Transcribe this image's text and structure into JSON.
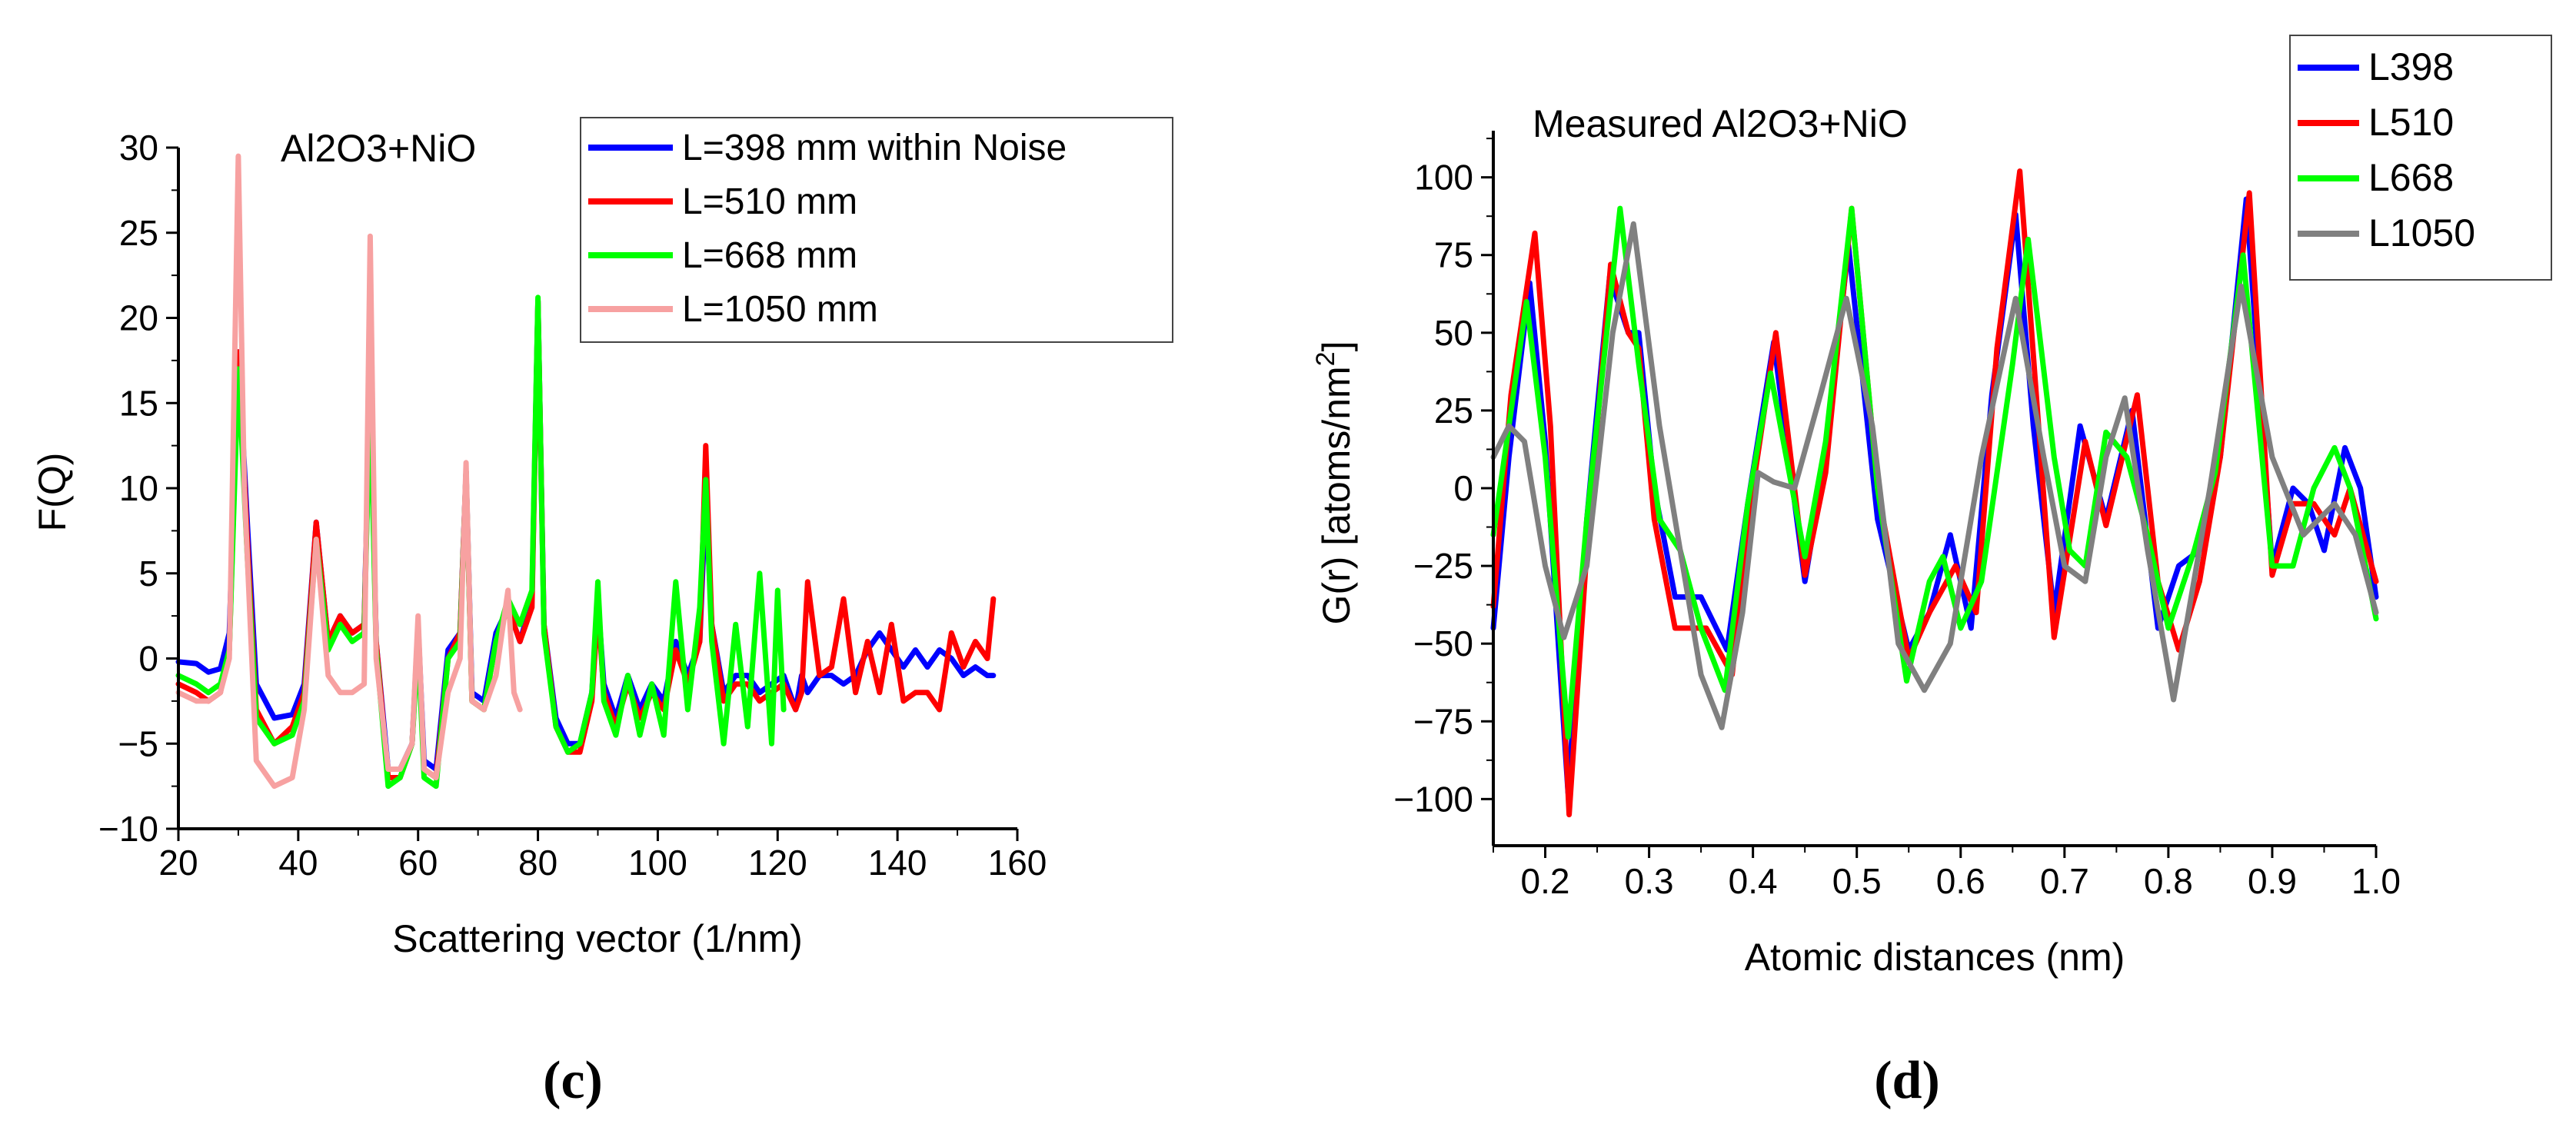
{
  "chart_data": [
    {
      "id": "c",
      "type": "line",
      "panel_label": "(c)",
      "annotation": "Al2O3+NiO",
      "xlabel": "Scattering vector (1/nm)",
      "ylabel": "F(Q)",
      "xlim": [
        20,
        160
      ],
      "ylim": [
        -10,
        30
      ],
      "xticks": [
        "20",
        "40",
        "60",
        "80",
        "100",
        "120",
        "140",
        "160"
      ],
      "yticks": [
        "−10",
        "−5",
        "0",
        "5",
        "10",
        "15",
        "20",
        "25",
        "30"
      ],
      "xtick_values": [
        20,
        40,
        60,
        80,
        100,
        120,
        140,
        160
      ],
      "ytick_values": [
        -10,
        -5,
        0,
        5,
        10,
        15,
        20,
        25,
        30
      ],
      "legend_position": "top-right",
      "series": [
        {
          "name": "L=398 mm within Noise",
          "color": "#0000ff",
          "x": [
            20,
            23,
            25,
            27,
            28.5,
            30,
            31.5,
            33,
            36,
            39,
            41,
            43,
            45,
            47,
            49,
            51,
            52,
            53,
            55,
            57,
            59,
            60,
            61,
            63,
            65,
            67,
            68,
            69,
            71,
            73,
            75,
            77,
            79,
            80,
            81,
            83,
            85,
            87,
            89,
            90,
            91,
            93,
            95,
            97,
            99,
            101,
            103,
            105,
            107,
            108,
            109,
            111,
            113,
            115,
            117,
            119,
            121,
            123,
            124,
            125,
            127,
            129,
            131,
            133,
            135,
            137,
            139,
            141,
            143,
            145,
            147,
            149,
            151,
            153,
            155,
            156
          ],
          "y": [
            -0.2,
            -0.3,
            -0.8,
            -0.6,
            1.5,
            18,
            8,
            -1.5,
            -3.5,
            -3.3,
            -1.5,
            8,
            1,
            2.5,
            1.5,
            2,
            17,
            1,
            -6.5,
            -6.5,
            -5,
            2,
            -6,
            -6.5,
            0.5,
            1.5,
            11,
            -2,
            -2.5,
            1.5,
            3,
            1,
            3.5,
            21,
            2,
            -3.5,
            -5,
            -5,
            -2,
            3.5,
            -1.5,
            -3.5,
            -1,
            -3,
            -1.5,
            -2.5,
            1,
            -1,
            1,
            9.5,
            2,
            -2,
            -1,
            -1,
            -2,
            -1.5,
            -1,
            -3,
            -1,
            -2,
            -1,
            -1,
            -1.5,
            -1,
            0.5,
            1.5,
            0.5,
            -0.5,
            0.5,
            -0.5,
            0.5,
            0,
            -1,
            -0.5,
            -1,
            -1
          ]
        },
        {
          "name": "L=510 mm",
          "color": "#ff0000",
          "x": [
            20,
            23,
            25,
            27,
            28.5,
            30,
            31.5,
            33,
            36,
            39,
            41,
            43,
            45,
            47,
            49,
            51,
            52,
            53,
            55,
            57,
            59,
            60,
            61,
            63,
            65,
            67,
            68,
            69,
            71,
            73,
            75,
            77,
            79,
            80,
            81,
            83,
            85,
            87,
            89,
            90,
            91,
            93,
            95,
            97,
            99,
            101,
            103,
            105,
            107,
            108,
            109,
            111,
            113,
            115,
            117,
            119,
            121,
            123,
            124,
            125,
            127,
            129,
            131,
            133,
            135,
            137,
            139,
            141,
            143,
            145,
            147,
            149,
            151,
            153,
            155,
            156
          ],
          "y": [
            -1.5,
            -2,
            -2.5,
            -2,
            0.5,
            18,
            7,
            -3,
            -5,
            -4,
            -2,
            8,
            1,
            2.5,
            1.5,
            2,
            16,
            1,
            -7,
            -7,
            -5,
            1.5,
            -6.5,
            -7,
            0,
            1.5,
            11,
            -2.5,
            -3,
            1,
            3,
            1,
            3,
            21,
            2,
            -4,
            -5.5,
            -5.5,
            -2.5,
            3,
            -2,
            -4,
            -1.5,
            -3.5,
            -2,
            -3,
            0.5,
            -1.5,
            1,
            12.5,
            2,
            -2.5,
            -1.5,
            -1.5,
            -2.5,
            -2,
            -1.5,
            -3,
            -2,
            4.5,
            -1,
            -0.5,
            3.5,
            -2,
            1,
            -2,
            2,
            -2.5,
            -2,
            -2,
            -3,
            1.5,
            -0.5,
            1,
            0,
            3.5
          ]
        },
        {
          "name": "L=668 mm",
          "color": "#00ff00",
          "x": [
            20,
            23,
            25,
            27,
            28.5,
            30,
            31.5,
            33,
            36,
            39,
            41,
            43,
            45,
            47,
            49,
            51,
            52,
            53,
            55,
            57,
            59,
            60,
            61,
            63,
            65,
            67,
            68,
            69,
            71,
            73,
            75,
            77,
            79,
            80,
            81,
            83,
            85,
            87,
            89,
            90,
            91,
            93,
            95,
            97,
            99,
            101,
            103,
            105,
            107,
            108,
            109,
            111,
            113,
            115,
            117,
            119,
            120,
            121
          ],
          "y": [
            -1,
            -1.5,
            -2,
            -1.5,
            0.5,
            17,
            6,
            -3.5,
            -5,
            -4.5,
            -2.5,
            7,
            0.5,
            2,
            1,
            1.5,
            16,
            0.5,
            -7.5,
            -7,
            -5,
            1,
            -7,
            -7.5,
            0,
            1,
            11,
            -2.5,
            -3,
            1,
            3.5,
            2,
            4,
            21.2,
            1.5,
            -4,
            -5.5,
            -5,
            -2,
            4.5,
            -2.5,
            -4.5,
            -1,
            -4.5,
            -1.5,
            -4.5,
            4.5,
            -3,
            3,
            10.5,
            1,
            -5,
            2,
            -4,
            5,
            -5,
            4,
            -3
          ]
        },
        {
          "name": "L=1050 mm",
          "color": "#f7a1a1",
          "x": [
            20,
            23,
            25,
            27,
            28.5,
            30,
            31,
            33,
            36,
            39,
            41,
            43,
            45,
            47,
            49,
            51,
            52,
            53,
            55,
            57,
            59,
            60,
            61,
            63,
            65,
            67,
            68,
            69,
            71,
            73,
            75,
            76,
            77
          ],
          "y": [
            -2,
            -2.5,
            -2.5,
            -2,
            0,
            29.5,
            10,
            -6,
            -7.5,
            -7,
            -3,
            7,
            -1,
            -2,
            -2,
            -1.5,
            24.8,
            0,
            -6.5,
            -6.5,
            -5,
            2.5,
            -6.5,
            -7,
            -2,
            0,
            11.5,
            -2.5,
            -3,
            -1,
            4,
            -2,
            -3
          ]
        }
      ]
    },
    {
      "id": "d",
      "type": "line",
      "panel_label": "(d)",
      "annotation": "Measured Al2O3+NiO",
      "xlabel": "Atomic distances (nm)",
      "ylabel": "G(r) [atoms/nm",
      "ylabel_superscript": "2",
      "ylabel_suffix": "]",
      "xlim": [
        0.15,
        1.0
      ],
      "ylim": [
        -115,
        115
      ],
      "xticks": [
        "0.2",
        "0.3",
        "0.4",
        "0.5",
        "0.6",
        "0.7",
        "0.8",
        "0.9",
        "1.0"
      ],
      "yticks": [
        "−100",
        "−75",
        "−50",
        "−25",
        "0",
        "25",
        "50",
        "75",
        "100"
      ],
      "xtick_values": [
        0.2,
        0.3,
        0.4,
        0.5,
        0.6,
        0.7,
        0.8,
        0.9,
        1.0
      ],
      "ytick_values": [
        -100,
        -75,
        -50,
        -25,
        0,
        25,
        50,
        75,
        100
      ],
      "legend_position": "top-right",
      "series": [
        {
          "name": "L398",
          "color": "#0000ff",
          "x": [
            0.15,
            0.165,
            0.185,
            0.2,
            0.222,
            0.24,
            0.262,
            0.28,
            0.29,
            0.305,
            0.325,
            0.335,
            0.35,
            0.375,
            0.395,
            0.42,
            0.45,
            0.47,
            0.492,
            0.52,
            0.55,
            0.57,
            0.59,
            0.61,
            0.63,
            0.653,
            0.67,
            0.69,
            0.715,
            0.74,
            0.765,
            0.79,
            0.81,
            0.83,
            0.85,
            0.875,
            0.9,
            0.92,
            0.935,
            0.95,
            0.97,
            0.985,
            1.0
          ],
          "y": [
            -45,
            10,
            66,
            15,
            -98,
            -10,
            68,
            50,
            50,
            0,
            -35,
            -35,
            -35,
            -52,
            -5,
            47,
            -30,
            10,
            78,
            -10,
            -52,
            -40,
            -15,
            -45,
            30,
            88,
            20,
            -40,
            20,
            -10,
            25,
            -45,
            -25,
            -20,
            10,
            93,
            -25,
            0,
            -5,
            -20,
            13,
            0,
            -35
          ]
        },
        {
          "name": "L510",
          "color": "#ff0000",
          "x": [
            0.15,
            0.167,
            0.19,
            0.205,
            0.223,
            0.24,
            0.263,
            0.28,
            0.29,
            0.305,
            0.325,
            0.34,
            0.355,
            0.38,
            0.4,
            0.422,
            0.45,
            0.47,
            0.495,
            0.52,
            0.55,
            0.57,
            0.595,
            0.615,
            0.635,
            0.657,
            0.675,
            0.69,
            0.72,
            0.74,
            0.77,
            0.79,
            0.81,
            0.83,
            0.85,
            0.878,
            0.9,
            0.92,
            0.94,
            0.96,
            0.975,
            1.0
          ],
          "y": [
            -38,
            30,
            82,
            20,
            -105,
            -20,
            72,
            50,
            45,
            -10,
            -45,
            -45,
            -45,
            -60,
            0,
            50,
            -28,
            5,
            90,
            0,
            -55,
            -40,
            -25,
            -40,
            45,
            102,
            20,
            -48,
            15,
            -12,
            30,
            -30,
            -52,
            -30,
            10,
            95,
            -28,
            -5,
            -5,
            -15,
            0,
            -30
          ]
        },
        {
          "name": "L668",
          "color": "#00ff00",
          "x": [
            0.15,
            0.165,
            0.182,
            0.2,
            0.222,
            0.24,
            0.272,
            0.29,
            0.31,
            0.33,
            0.35,
            0.373,
            0.395,
            0.417,
            0.45,
            0.47,
            0.495,
            0.52,
            0.548,
            0.57,
            0.583,
            0.6,
            0.62,
            0.65,
            0.665,
            0.69,
            0.705,
            0.72,
            0.74,
            0.76,
            0.78,
            0.8,
            0.825,
            0.845,
            0.872,
            0.9,
            0.92,
            0.94,
            0.96,
            0.975,
            1.0
          ],
          "y": [
            -15,
            20,
            60,
            10,
            -80,
            -10,
            90,
            40,
            -10,
            -20,
            -45,
            -65,
            -5,
            37,
            -22,
            15,
            90,
            0,
            -62,
            -30,
            -22,
            -45,
            -30,
            40,
            80,
            10,
            -20,
            -25,
            18,
            10,
            -15,
            -45,
            -20,
            5,
            75,
            -25,
            -25,
            0,
            13,
            0,
            -42
          ]
        },
        {
          "name": "L1050",
          "color": "#808080",
          "x": [
            0.15,
            0.165,
            0.18,
            0.2,
            0.218,
            0.24,
            0.265,
            0.285,
            0.31,
            0.33,
            0.35,
            0.37,
            0.39,
            0.405,
            0.42,
            0.44,
            0.465,
            0.49,
            0.515,
            0.54,
            0.565,
            0.59,
            0.62,
            0.653,
            0.68,
            0.7,
            0.72,
            0.74,
            0.758,
            0.78,
            0.805,
            0.84,
            0.87,
            0.9,
            0.93,
            0.96,
            0.98,
            1.0
          ],
          "y": [
            10,
            20,
            15,
            -25,
            -48,
            -25,
            50,
            85,
            20,
            -20,
            -60,
            -77,
            -40,
            5,
            2,
            0,
            30,
            61,
            20,
            -50,
            -65,
            -50,
            10,
            61,
            10,
            -25,
            -30,
            10,
            29,
            -20,
            -68,
            0,
            65,
            10,
            -15,
            -5,
            -15,
            -40
          ]
        }
      ]
    }
  ]
}
